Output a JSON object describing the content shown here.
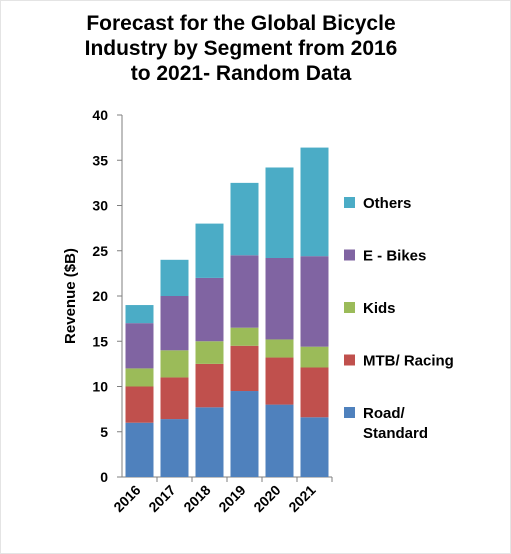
{
  "chart_data": {
    "type": "bar",
    "stacked": true,
    "title": "Forecast for the Global Bicycle\nIndustry by Segment from 2016\nto 2021- Random Data",
    "xlabel": "",
    "ylabel": "Revenue ($B)",
    "ylim": [
      0,
      40
    ],
    "yticks": [
      0,
      5,
      10,
      15,
      20,
      25,
      30,
      35,
      40
    ],
    "grid": false,
    "legend_position": "right",
    "categories": [
      "2016",
      "2017",
      "2018",
      "2019",
      "2020",
      "2021"
    ],
    "series": [
      {
        "name": "Road/ Standard",
        "color": "#4f81bd",
        "values": [
          6,
          6.4,
          7.7,
          9.5,
          8,
          6.6
        ]
      },
      {
        "name": "MTB/ Racing",
        "color": "#c0504d",
        "values": [
          4,
          4.6,
          4.8,
          5,
          5.2,
          5.5
        ]
      },
      {
        "name": "Kids",
        "color": "#9bbb59",
        "values": [
          2,
          3,
          2.5,
          2,
          2,
          2.3
        ]
      },
      {
        "name": "E - Bikes",
        "color": "#8064a2",
        "values": [
          5,
          6,
          7,
          8,
          9,
          10
        ]
      },
      {
        "name": "Others",
        "color": "#4bacc6",
        "values": [
          2,
          4,
          6,
          8,
          10,
          12
        ]
      }
    ]
  }
}
